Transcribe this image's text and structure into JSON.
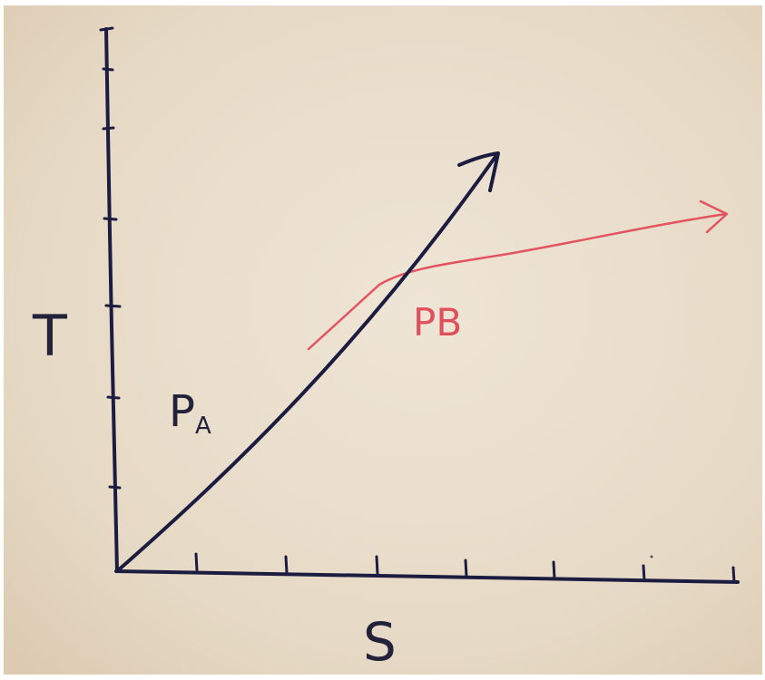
{
  "labels": {
    "y_axis": "T",
    "x_axis": "S",
    "line_a_main": "P",
    "line_a_sub": "A",
    "line_b": "PB"
  },
  "colors": {
    "paper": "#e9ddcb",
    "ink_dark": "#1a1a3e",
    "ink_red": "#e0505a"
  }
}
